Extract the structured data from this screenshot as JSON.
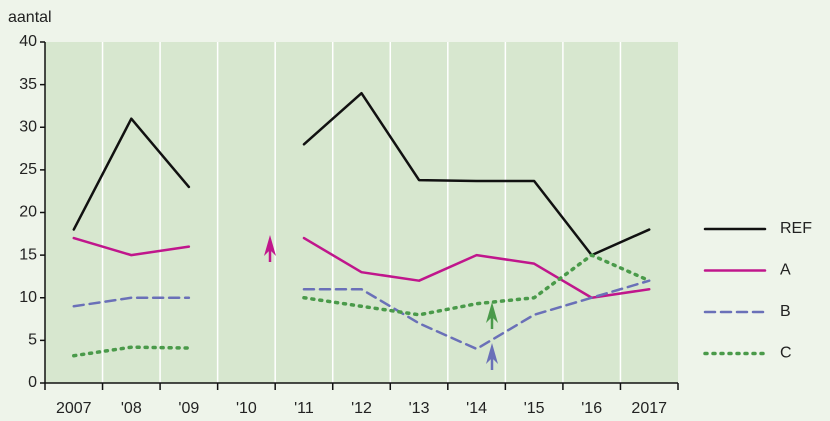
{
  "chart_data": {
    "type": "line",
    "y_label": "aantal",
    "categories": [
      "2007",
      "'08",
      "'09",
      "'10",
      "'11",
      "'12",
      "'13",
      "'14",
      "'15",
      "'16",
      "2017"
    ],
    "series": [
      {
        "name": "REF",
        "color": "#111111",
        "style": "solid",
        "values": [
          18,
          31,
          23,
          null,
          28,
          34,
          23.8,
          23.7,
          23.7,
          15,
          18
        ]
      },
      {
        "name": "A",
        "color": "#c0168c",
        "style": "solid",
        "values": [
          17,
          15,
          16,
          null,
          17,
          13,
          12,
          15,
          14,
          10,
          11
        ]
      },
      {
        "name": "B",
        "color": "#6a70b8",
        "style": "dashed",
        "values": [
          9,
          10,
          10,
          null,
          11,
          11,
          7,
          4,
          8,
          10,
          12
        ]
      },
      {
        "name": "C",
        "color": "#4a9a4a",
        "style": "dotted",
        "values": [
          3.2,
          4.2,
          4.1,
          null,
          10,
          9,
          8,
          9.3,
          10,
          15,
          12
        ]
      }
    ],
    "ylim": [
      0,
      40
    ],
    "yticks": [
      0,
      5,
      10,
      15,
      20,
      25,
      30,
      35,
      40
    ]
  }
}
